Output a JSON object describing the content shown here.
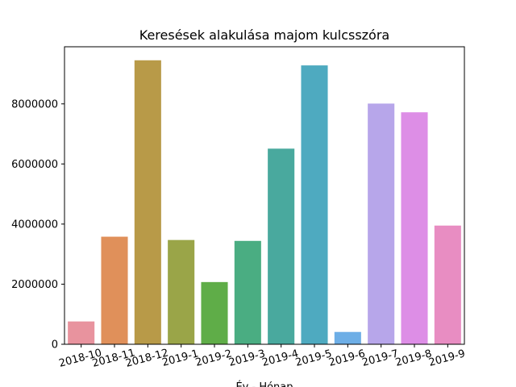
{
  "chart_data": {
    "type": "bar",
    "title": "Keresések alakulása majom kulcsszóra",
    "xlabel": "Év - Hónap",
    "ylabel": "",
    "categories": [
      "2018-10",
      "2018-11",
      "2018-12",
      "2019-1",
      "2019-2",
      "2019-3",
      "2019-4",
      "2019-5",
      "2019-6",
      "2019-7",
      "2019-8",
      "2019-9"
    ],
    "values": [
      760000,
      3580000,
      9450000,
      3470000,
      2070000,
      3440000,
      6510000,
      9280000,
      410000,
      8010000,
      7720000,
      3950000
    ],
    "colors": [
      "#e8939e",
      "#e0905a",
      "#b89a48",
      "#9aa548",
      "#5fad48",
      "#4aad82",
      "#49a99e",
      "#4eaac0",
      "#6daee6",
      "#b7a6ea",
      "#dd8ee6",
      "#e88dc2"
    ],
    "ylim": [
      0,
      9900000
    ],
    "yticks": [
      0,
      2000000,
      4000000,
      6000000,
      8000000
    ],
    "ytick_labels": [
      "0",
      "2000000",
      "4000000",
      "6000000",
      "8000000"
    ],
    "grid": false,
    "xtick_rotation": 15
  }
}
